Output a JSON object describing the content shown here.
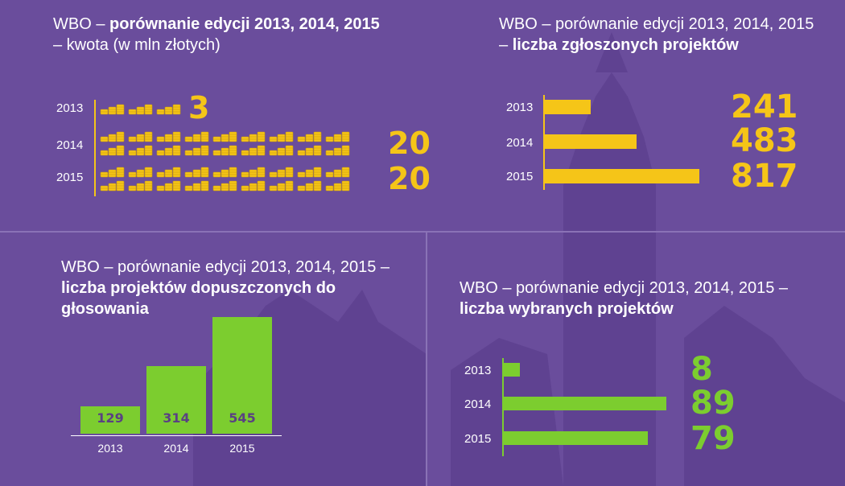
{
  "panels": {
    "amount": {
      "title_prefix": "WBO – ",
      "title_bold": "porównanie edycji 2013, 2014, 2015",
      "title_suffix": "– kwota (w mln złotych)"
    },
    "submitted": {
      "title_prefix": "WBO –  porównanie edycji 2013, 2014, 2015 – ",
      "title_bold": "liczba zgłoszonych projektów"
    },
    "admitted": {
      "title_prefix": "WBO – porównanie edycji 2013, 2014, 2015 – ",
      "title_bold": "liczba projektów dopuszczonych do głosowania"
    },
    "selected": {
      "title_prefix": "WBO – porównanie edycji 2013, 2014, 2015 – ",
      "title_bold": "liczba wybranych projektów"
    }
  },
  "colors": {
    "background": "#6a4d9c",
    "yellow": "#f5c518",
    "green": "#7ccd2f"
  },
  "chart_data": [
    {
      "type": "bar",
      "title": "WBO – porównanie edycji 2013, 2014, 2015 – kwota (w mln złotych)",
      "orientation": "horizontal",
      "categories": [
        "2013",
        "2014",
        "2015"
      ],
      "values": [
        3,
        20,
        20
      ],
      "value_labels": [
        "3",
        "20",
        "20"
      ],
      "icon": "coin-stack-icon"
    },
    {
      "type": "bar",
      "title": "WBO –  porównanie edycji 2013, 2014, 2015 – liczba zgłoszonych projektów",
      "orientation": "horizontal",
      "categories": [
        "2013",
        "2014",
        "2015"
      ],
      "values": [
        241,
        483,
        817
      ],
      "value_labels": [
        "241",
        "483",
        "817"
      ]
    },
    {
      "type": "bar",
      "title": "WBO – porównanie edycji 2013, 2014, 2015 – liczba projektów dopuszczonych do głosowania",
      "orientation": "vertical",
      "categories": [
        "2013",
        "2014",
        "2015"
      ],
      "values": [
        129,
        314,
        545
      ],
      "value_labels": [
        "129",
        "314",
        "545"
      ]
    },
    {
      "type": "bar",
      "title": "WBO – porównanie edycji 2013, 2014, 2015 – liczba wybranych projektów",
      "orientation": "horizontal",
      "categories": [
        "2013",
        "2014",
        "2015"
      ],
      "values": [
        8,
        89,
        79
      ],
      "value_labels": [
        "8",
        "89",
        "79"
      ]
    }
  ]
}
